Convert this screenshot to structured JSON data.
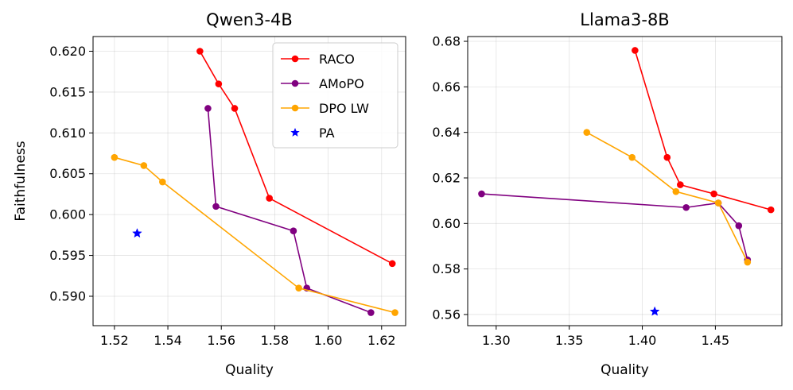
{
  "chart_data": [
    {
      "type": "line",
      "title": "Qwen3-4B",
      "xlabel": "Quality",
      "ylabel": "Faithfulness",
      "xlim": [
        1.512,
        1.629
      ],
      "ylim": [
        0.5864,
        0.6218
      ],
      "xticks": [
        1.52,
        1.54,
        1.56,
        1.58,
        1.6,
        1.62
      ],
      "xtick_labels": [
        "1.52",
        "1.54",
        "1.56",
        "1.58",
        "1.60",
        "1.62"
      ],
      "yticks": [
        0.59,
        0.595,
        0.6,
        0.605,
        0.61,
        0.615,
        0.62
      ],
      "ytick_labels": [
        "0.590",
        "0.595",
        "0.600",
        "0.605",
        "0.610",
        "0.615",
        "0.620"
      ],
      "grid": true,
      "legend": "top-right",
      "series": [
        {
          "name": "RACO",
          "color": "#ff0000",
          "marker": "circle",
          "line": true,
          "x": [
            1.552,
            1.559,
            1.565,
            1.578,
            1.624
          ],
          "y": [
            0.62,
            0.616,
            0.613,
            0.602,
            0.594
          ]
        },
        {
          "name": "AMoPO",
          "color": "#800080",
          "marker": "circle",
          "line": true,
          "x": [
            1.555,
            1.558,
            1.587,
            1.592,
            1.616
          ],
          "y": [
            0.613,
            0.601,
            0.598,
            0.591,
            0.588
          ]
        },
        {
          "name": "DPO LW",
          "color": "#ffa500",
          "marker": "circle",
          "line": true,
          "x": [
            1.52,
            1.531,
            1.538,
            1.589,
            1.625
          ],
          "y": [
            0.607,
            0.606,
            0.604,
            0.591,
            0.588
          ]
        },
        {
          "name": "PA",
          "color": "#0000ff",
          "marker": "star",
          "line": false,
          "x": [
            1.5285
          ],
          "y": [
            0.5977
          ]
        }
      ]
    },
    {
      "type": "line",
      "title": "Llama3-8B",
      "xlabel": "Quality",
      "ylabel": "",
      "xlim": [
        1.2805,
        1.4955
      ],
      "ylim": [
        0.5551,
        0.6821
      ],
      "xticks": [
        1.3,
        1.35,
        1.4,
        1.45
      ],
      "xtick_labels": [
        "1.30",
        "1.35",
        "1.40",
        "1.45"
      ],
      "yticks": [
        0.56,
        0.58,
        0.6,
        0.62,
        0.64,
        0.66,
        0.68
      ],
      "ytick_labels": [
        "0.56",
        "0.58",
        "0.60",
        "0.62",
        "0.64",
        "0.66",
        "0.68"
      ],
      "grid": true,
      "legend": "none",
      "series": [
        {
          "name": "RACO",
          "color": "#ff0000",
          "marker": "circle",
          "line": true,
          "x": [
            1.395,
            1.417,
            1.426,
            1.449,
            1.488
          ],
          "y": [
            0.676,
            0.629,
            0.617,
            0.613,
            0.606
          ]
        },
        {
          "name": "AMoPO",
          "color": "#800080",
          "marker": "circle",
          "line": true,
          "x": [
            1.29,
            1.43,
            1.452,
            1.466,
            1.472
          ],
          "y": [
            0.613,
            0.607,
            0.609,
            0.599,
            0.584
          ]
        },
        {
          "name": "DPO LW",
          "color": "#ffa500",
          "marker": "circle",
          "line": true,
          "x": [
            1.362,
            1.393,
            1.423,
            1.452,
            1.472
          ],
          "y": [
            0.64,
            0.629,
            0.614,
            0.609,
            0.583
          ]
        },
        {
          "name": "PA",
          "color": "#0000ff",
          "marker": "star",
          "line": false,
          "x": [
            1.4085
          ],
          "y": [
            0.5613
          ]
        }
      ]
    }
  ]
}
